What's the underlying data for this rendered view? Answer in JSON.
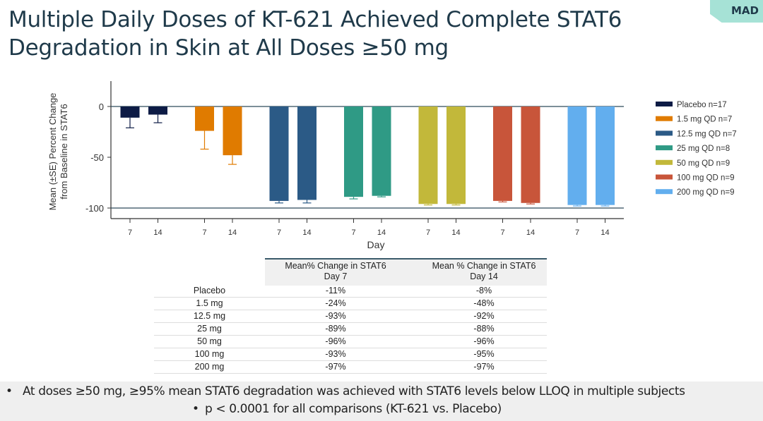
{
  "slide": {
    "title_line1": "Multiple Daily Doses of KT-621 Achieved Complete STAT6",
    "title_line2": "Degradation in Skin at All Doses ≥50 mg",
    "badge": "MAD"
  },
  "chart_data": {
    "type": "bar",
    "xlabel": "Day",
    "ylabel_line1": "Mean (±SE) Percent Change",
    "ylabel_line2": "from Baseline in STAT6",
    "ylim": [
      -110,
      25
    ],
    "yticks": [
      "0",
      "-50",
      "-100"
    ],
    "ytick_values": [
      0,
      -50,
      -100
    ],
    "reference_lines": [
      0,
      -100
    ],
    "categories": [
      "7",
      "14"
    ],
    "legend_position": "right",
    "series": [
      {
        "name": "Placebo n=17",
        "color": "#0d1b45",
        "values": [
          -11,
          -8
        ],
        "error_low": [
          -21,
          -16
        ]
      },
      {
        "name": "1.5 mg QD n=7",
        "color": "#e07b00",
        "values": [
          -24,
          -48
        ],
        "error_low": [
          -42,
          -57
        ]
      },
      {
        "name": "12.5 mg QD n=7",
        "color": "#2b5a86",
        "values": [
          -93,
          -92
        ],
        "error_low": [
          -95,
          -95
        ]
      },
      {
        "name": "25 mg QD n=8",
        "color": "#2f9a85",
        "values": [
          -89,
          -88
        ],
        "error_low": [
          -91,
          -89
        ]
      },
      {
        "name": "50 mg QD n=9",
        "color": "#c2b83a",
        "values": [
          -96,
          -96
        ],
        "error_low": [
          -97,
          -97
        ]
      },
      {
        "name": "100 mg QD n=9",
        "color": "#c8553a",
        "values": [
          -93,
          -95
        ],
        "error_low": [
          -94,
          -96
        ]
      },
      {
        "name": "200 mg QD n=9",
        "color": "#62aeee",
        "values": [
          -97,
          -97
        ],
        "error_low": [
          -98,
          -98
        ]
      }
    ]
  },
  "table": {
    "headers": [
      {
        "line1": "Mean% Change in STAT6",
        "line2": "Day 7"
      },
      {
        "line1": "Mean % Change in STAT6",
        "line2": "Day 14"
      }
    ],
    "rows": [
      {
        "dose": "Placebo",
        "d7": "-11%",
        "d14": "-8%"
      },
      {
        "dose": "1.5 mg",
        "d7": "-24%",
        "d14": "-48%"
      },
      {
        "dose": "12.5 mg",
        "d7": "-93%",
        "d14": "-92%"
      },
      {
        "dose": "25 mg",
        "d7": "-89%",
        "d14": "-88%"
      },
      {
        "dose": "50 mg",
        "d7": "-96%",
        "d14": "-96%"
      },
      {
        "dose": "100 mg",
        "d7": "-93%",
        "d14": "-95%"
      },
      {
        "dose": "200 mg",
        "d7": "-97%",
        "d14": "-97%"
      }
    ]
  },
  "footer": {
    "bullet": "•",
    "line1": "At doses ≥50 mg, ≥95% mean STAT6 degradation was achieved with STAT6 levels below LLOQ in multiple subjects",
    "line2": "p < 0.0001 for all comparisons (KT-621 vs. Placebo)"
  }
}
